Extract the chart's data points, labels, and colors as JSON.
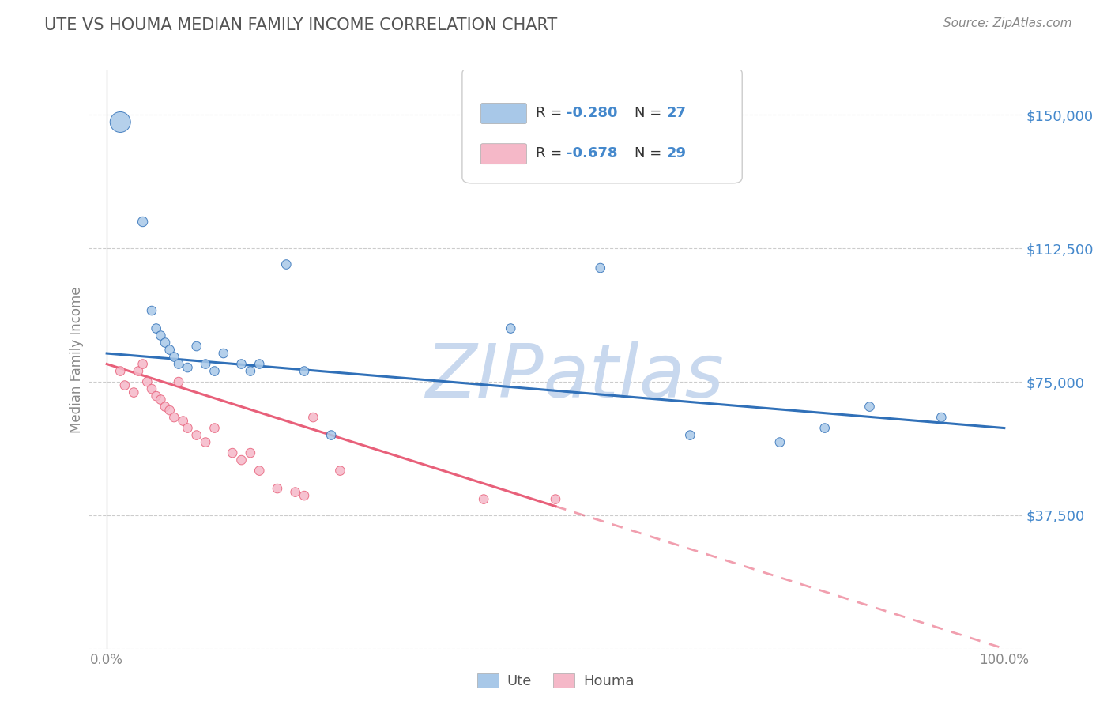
{
  "title": "UTE VS HOUMA MEDIAN FAMILY INCOME CORRELATION CHART",
  "source": "Source: ZipAtlas.com",
  "ylabel": "Median Family Income",
  "xlim": [
    -2,
    102
  ],
  "ylim": [
    0,
    162500
  ],
  "yticks": [
    0,
    37500,
    75000,
    112500,
    150000
  ],
  "ytick_labels": [
    "",
    "$37,500",
    "$75,000",
    "$112,500",
    "$150,000"
  ],
  "xtick_labels": [
    "0.0%",
    "100.0%"
  ],
  "ute_color": "#a8c8e8",
  "houma_color": "#f5b8c8",
  "ute_line_color": "#3070b8",
  "houma_line_color": "#e8607a",
  "watermark": "ZIPatlas",
  "watermark_color": "#c8d8ee",
  "title_color": "#555555",
  "ytick_color": "#4488cc",
  "background_color": "#ffffff",
  "grid_color": "#cccccc",
  "ute_x": [
    1.5,
    4.0,
    5.0,
    5.5,
    6.0,
    6.5,
    7.0,
    7.5,
    8.0,
    9.0,
    10.0,
    11.0,
    12.0,
    13.0,
    15.0,
    16.0,
    17.0,
    20.0,
    22.0,
    25.0,
    45.0,
    55.0,
    65.0,
    75.0,
    80.0,
    85.0,
    93.0
  ],
  "ute_y": [
    148000,
    120000,
    95000,
    90000,
    88000,
    86000,
    84000,
    82000,
    80000,
    79000,
    85000,
    80000,
    78000,
    83000,
    80000,
    78000,
    80000,
    108000,
    78000,
    60000,
    90000,
    107000,
    60000,
    58000,
    62000,
    68000,
    65000
  ],
  "ute_sizes": [
    350,
    80,
    70,
    70,
    70,
    70,
    70,
    70,
    70,
    70,
    70,
    70,
    70,
    70,
    70,
    70,
    70,
    70,
    70,
    70,
    70,
    70,
    70,
    70,
    70,
    70,
    70
  ],
  "houma_x": [
    1.5,
    2.0,
    3.0,
    3.5,
    4.0,
    4.5,
    5.0,
    5.5,
    6.0,
    6.5,
    7.0,
    7.5,
    8.0,
    8.5,
    9.0,
    10.0,
    11.0,
    12.0,
    14.0,
    15.0,
    16.0,
    17.0,
    19.0,
    21.0,
    22.0,
    23.0,
    26.0,
    42.0,
    50.0
  ],
  "houma_y": [
    78000,
    74000,
    72000,
    78000,
    80000,
    75000,
    73000,
    71000,
    70000,
    68000,
    67000,
    65000,
    75000,
    64000,
    62000,
    60000,
    58000,
    62000,
    55000,
    53000,
    55000,
    50000,
    45000,
    44000,
    43000,
    65000,
    50000,
    42000,
    42000
  ],
  "houma_sizes": [
    70,
    70,
    70,
    70,
    70,
    70,
    70,
    70,
    70,
    70,
    70,
    70,
    70,
    70,
    70,
    70,
    70,
    70,
    70,
    70,
    70,
    70,
    70,
    70,
    70,
    70,
    70,
    70,
    70
  ],
  "ute_trend_x0": 0,
  "ute_trend_y0": 83000,
  "ute_trend_x1": 100,
  "ute_trend_y1": 62000,
  "houma_trend_x0": 0,
  "houma_trend_y0": 80000,
  "houma_trend_x1": 50,
  "houma_trend_y1": 40000,
  "houma_solid_end": 50,
  "houma_dash_end": 100,
  "legend_R1": "R = -0.280",
  "legend_N1": "N = 27",
  "legend_R2": "R = -0.678",
  "legend_N2": "N = 29",
  "bottom_legend_labels": [
    "Ute",
    "Houma"
  ]
}
